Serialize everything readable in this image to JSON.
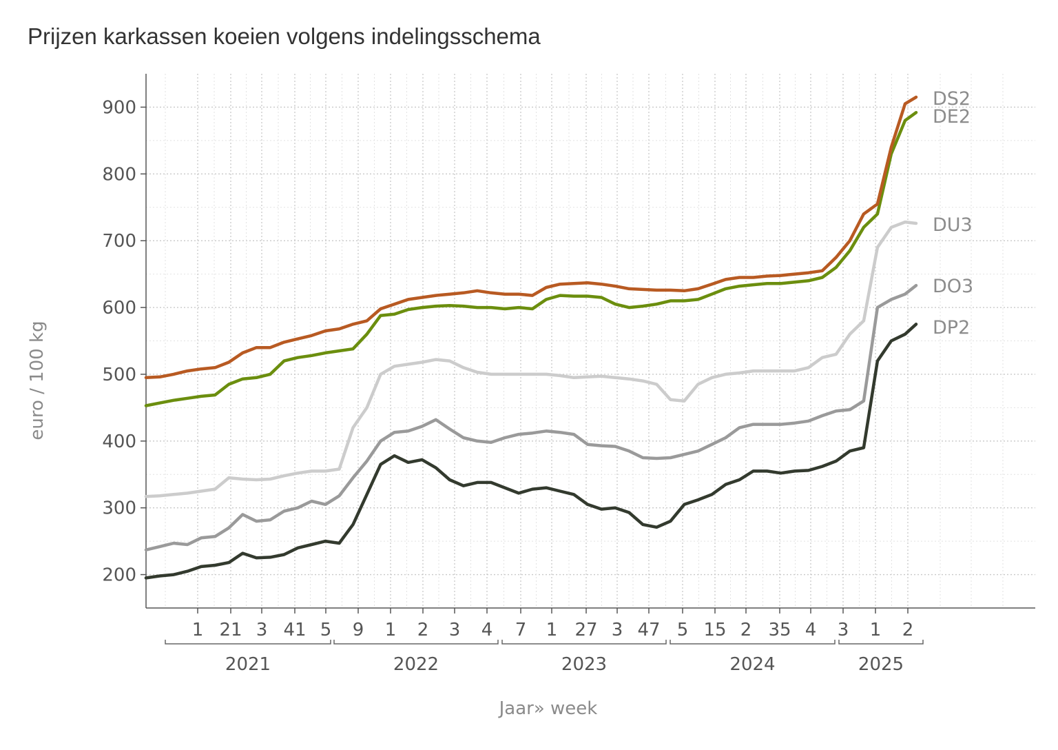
{
  "chart_data": {
    "type": "line",
    "title": "Prijzen karkassen koeien volgens indelingsschema",
    "xlabel": "Jaar» week",
    "ylabel": "euro / 100 kg",
    "ylim": [
      150,
      950
    ],
    "yticks": [
      200,
      300,
      400,
      500,
      600,
      700,
      800,
      900
    ],
    "x_unit": "week index",
    "xlim": [
      0,
      280
    ],
    "grid": true,
    "legend": "end-of-line labels",
    "x_tick_labels": [
      "1",
      "21",
      "3",
      "41",
      "5",
      "9",
      "1",
      "2",
      "3",
      "4",
      "7",
      "1",
      "27",
      "3",
      "47",
      "5",
      "15",
      "2",
      "35",
      "4",
      "3",
      "1",
      "2"
    ],
    "years": [
      "2021",
      "2022",
      "2023",
      "2024",
      "2025"
    ],
    "series": [
      {
        "name": "DS2",
        "color": "#b85a22",
        "x": [
          0,
          5,
          10,
          15,
          20,
          25,
          30,
          35,
          40,
          45,
          50,
          55,
          60,
          65,
          70,
          75,
          80,
          85,
          90,
          95,
          100,
          105,
          110,
          115,
          120,
          125,
          130,
          135,
          140,
          145,
          150,
          155,
          160,
          165,
          170,
          175,
          180,
          185,
          190,
          195,
          200,
          205,
          210,
          215,
          220,
          225,
          230,
          235,
          240,
          245,
          250,
          255,
          260,
          265,
          270,
          275,
          279
        ],
        "values": [
          495,
          496,
          500,
          505,
          508,
          510,
          518,
          532,
          540,
          540,
          548,
          553,
          558,
          565,
          568,
          575,
          580,
          598,
          605,
          612,
          615,
          618,
          620,
          622,
          625,
          622,
          620,
          620,
          618,
          630,
          635,
          636,
          637,
          635,
          632,
          628,
          627,
          626,
          626,
          625,
          628,
          635,
          642,
          645,
          645,
          647,
          648,
          650,
          652,
          655,
          675,
          700,
          740,
          755,
          840,
          905,
          915
        ]
      },
      {
        "name": "DE2",
        "color": "#6b8e0e",
        "x": [
          0,
          5,
          10,
          15,
          20,
          25,
          30,
          35,
          40,
          45,
          50,
          55,
          60,
          65,
          70,
          75,
          80,
          85,
          90,
          95,
          100,
          105,
          110,
          115,
          120,
          125,
          130,
          135,
          140,
          145,
          150,
          155,
          160,
          165,
          170,
          175,
          180,
          185,
          190,
          195,
          200,
          205,
          210,
          215,
          220,
          225,
          230,
          235,
          240,
          245,
          250,
          255,
          260,
          265,
          270,
          275,
          279
        ],
        "values": [
          453,
          457,
          461,
          464,
          467,
          469,
          485,
          493,
          495,
          500,
          520,
          525,
          528,
          532,
          535,
          538,
          560,
          588,
          590,
          597,
          600,
          602,
          603,
          602,
          600,
          600,
          598,
          600,
          598,
          612,
          618,
          617,
          617,
          615,
          605,
          600,
          602,
          605,
          610,
          610,
          612,
          620,
          628,
          632,
          634,
          636,
          636,
          638,
          640,
          645,
          660,
          685,
          720,
          740,
          830,
          880,
          892
        ]
      },
      {
        "name": "DU3",
        "color": "#cccccc",
        "x": [
          0,
          5,
          10,
          15,
          20,
          25,
          30,
          35,
          40,
          45,
          50,
          55,
          60,
          65,
          70,
          75,
          80,
          85,
          90,
          95,
          100,
          105,
          110,
          115,
          120,
          125,
          130,
          135,
          140,
          145,
          150,
          155,
          160,
          165,
          170,
          175,
          180,
          185,
          190,
          195,
          200,
          205,
          210,
          215,
          220,
          225,
          230,
          235,
          240,
          245,
          250,
          255,
          260,
          265,
          270,
          275,
          279
        ],
        "values": [
          317,
          318,
          320,
          322,
          325,
          328,
          345,
          343,
          342,
          343,
          348,
          352,
          355,
          355,
          358,
          420,
          450,
          500,
          512,
          515,
          518,
          522,
          520,
          510,
          503,
          500,
          500,
          500,
          500,
          500,
          498,
          495,
          496,
          497,
          495,
          493,
          490,
          485,
          462,
          460,
          485,
          495,
          500,
          502,
          505,
          505,
          505,
          505,
          510,
          525,
          530,
          560,
          580,
          690,
          720,
          728,
          726
        ]
      },
      {
        "name": "DO3",
        "color": "#9a9a9a",
        "x": [
          0,
          5,
          10,
          15,
          20,
          25,
          30,
          35,
          40,
          45,
          50,
          55,
          60,
          65,
          70,
          75,
          80,
          85,
          90,
          95,
          100,
          105,
          110,
          115,
          120,
          125,
          130,
          135,
          140,
          145,
          150,
          155,
          160,
          165,
          170,
          175,
          180,
          185,
          190,
          195,
          200,
          205,
          210,
          215,
          220,
          225,
          230,
          235,
          240,
          245,
          250,
          255,
          260,
          265,
          270,
          275,
          279
        ],
        "values": [
          237,
          242,
          247,
          245,
          255,
          257,
          270,
          290,
          280,
          282,
          295,
          300,
          310,
          305,
          318,
          345,
          370,
          400,
          413,
          415,
          422,
          432,
          418,
          405,
          400,
          398,
          405,
          410,
          412,
          415,
          413,
          410,
          395,
          393,
          392,
          385,
          375,
          374,
          375,
          380,
          385,
          395,
          405,
          420,
          425,
          425,
          425,
          427,
          430,
          438,
          445,
          447,
          460,
          600,
          612,
          620,
          633
        ]
      },
      {
        "name": "DP2",
        "color": "#333a2e",
        "x": [
          0,
          5,
          10,
          15,
          20,
          25,
          30,
          35,
          40,
          45,
          50,
          55,
          60,
          65,
          70,
          75,
          80,
          85,
          90,
          95,
          100,
          105,
          110,
          115,
          120,
          125,
          130,
          135,
          140,
          145,
          150,
          155,
          160,
          165,
          170,
          175,
          180,
          185,
          190,
          195,
          200,
          205,
          210,
          215,
          220,
          225,
          230,
          235,
          240,
          245,
          250,
          255,
          260,
          265,
          270,
          275,
          279
        ],
        "values": [
          195,
          198,
          200,
          205,
          212,
          214,
          218,
          232,
          225,
          226,
          230,
          240,
          245,
          250,
          247,
          275,
          320,
          365,
          378,
          368,
          372,
          360,
          342,
          333,
          338,
          338,
          330,
          322,
          328,
          330,
          325,
          320,
          305,
          298,
          300,
          293,
          275,
          271,
          280,
          305,
          312,
          320,
          335,
          342,
          355,
          355,
          352,
          355,
          356,
          362,
          370,
          385,
          390,
          520,
          550,
          560,
          575
        ]
      }
    ]
  }
}
